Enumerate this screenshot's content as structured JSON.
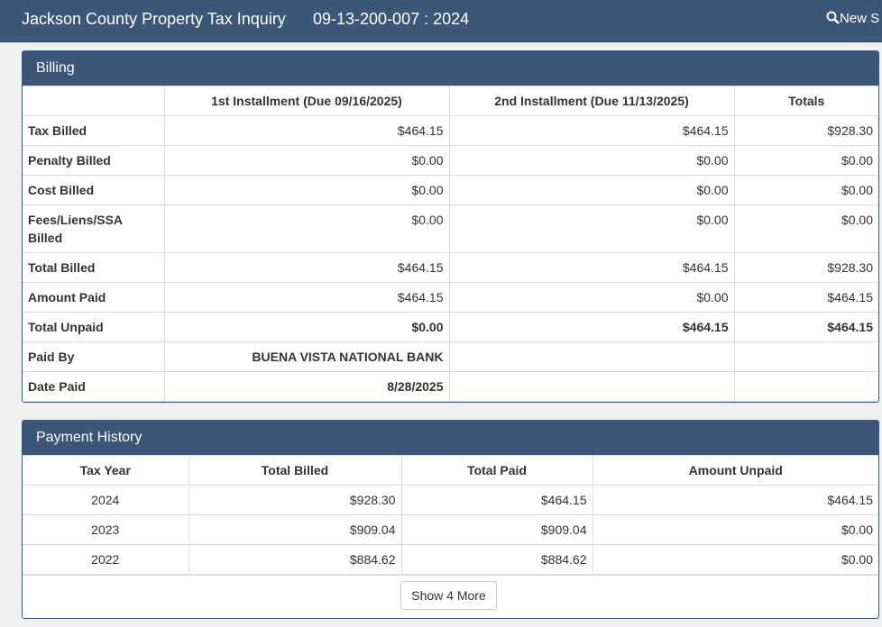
{
  "header": {
    "title": "Jackson County Property Tax Inquiry",
    "parcel": "09-13-200-007 : 2024",
    "search": "New S"
  },
  "billing": {
    "title": "Billing",
    "columns": [
      "1st Installment (Due 09/16/2025)",
      "2nd Installment (Due 11/13/2025)",
      "Totals"
    ],
    "rows": [
      {
        "label": "Tax Billed",
        "cells": [
          "$464.15",
          "$464.15",
          "$928.30"
        ]
      },
      {
        "label": "Penalty Billed",
        "cells": [
          "$0.00",
          "$0.00",
          "$0.00"
        ]
      },
      {
        "label": "Cost Billed",
        "cells": [
          "$0.00",
          "$0.00",
          "$0.00"
        ]
      },
      {
        "label": "Fees/Liens/SSA Billed",
        "cells": [
          "$0.00",
          "$0.00",
          "$0.00"
        ]
      },
      {
        "label": "Total Billed",
        "cells": [
          "$464.15",
          "$464.15",
          "$928.30"
        ]
      },
      {
        "label": "Amount Paid",
        "cells": [
          "$464.15",
          "$0.00",
          "$464.15"
        ]
      },
      {
        "label": "Total Unpaid",
        "cells": [
          "$0.00",
          "$464.15",
          "$464.15"
        ]
      },
      {
        "label": "Paid By",
        "cells": [
          "BUENA VISTA NATIONAL BANK"
        ]
      },
      {
        "label": "Date Paid",
        "cells": [
          "8/28/2025"
        ]
      }
    ]
  },
  "payment_history": {
    "title": "Payment History",
    "columns": [
      "Tax Year",
      "Total Billed",
      "Total Paid",
      "Amount Unpaid"
    ],
    "rows": [
      [
        "2024",
        "$928.30",
        "$464.15",
        "$464.15"
      ],
      [
        "2023",
        "$909.04",
        "$909.04",
        "$0.00"
      ],
      [
        "2022",
        "$884.62",
        "$884.62",
        "$0.00"
      ]
    ],
    "button": "Show 4 More"
  }
}
